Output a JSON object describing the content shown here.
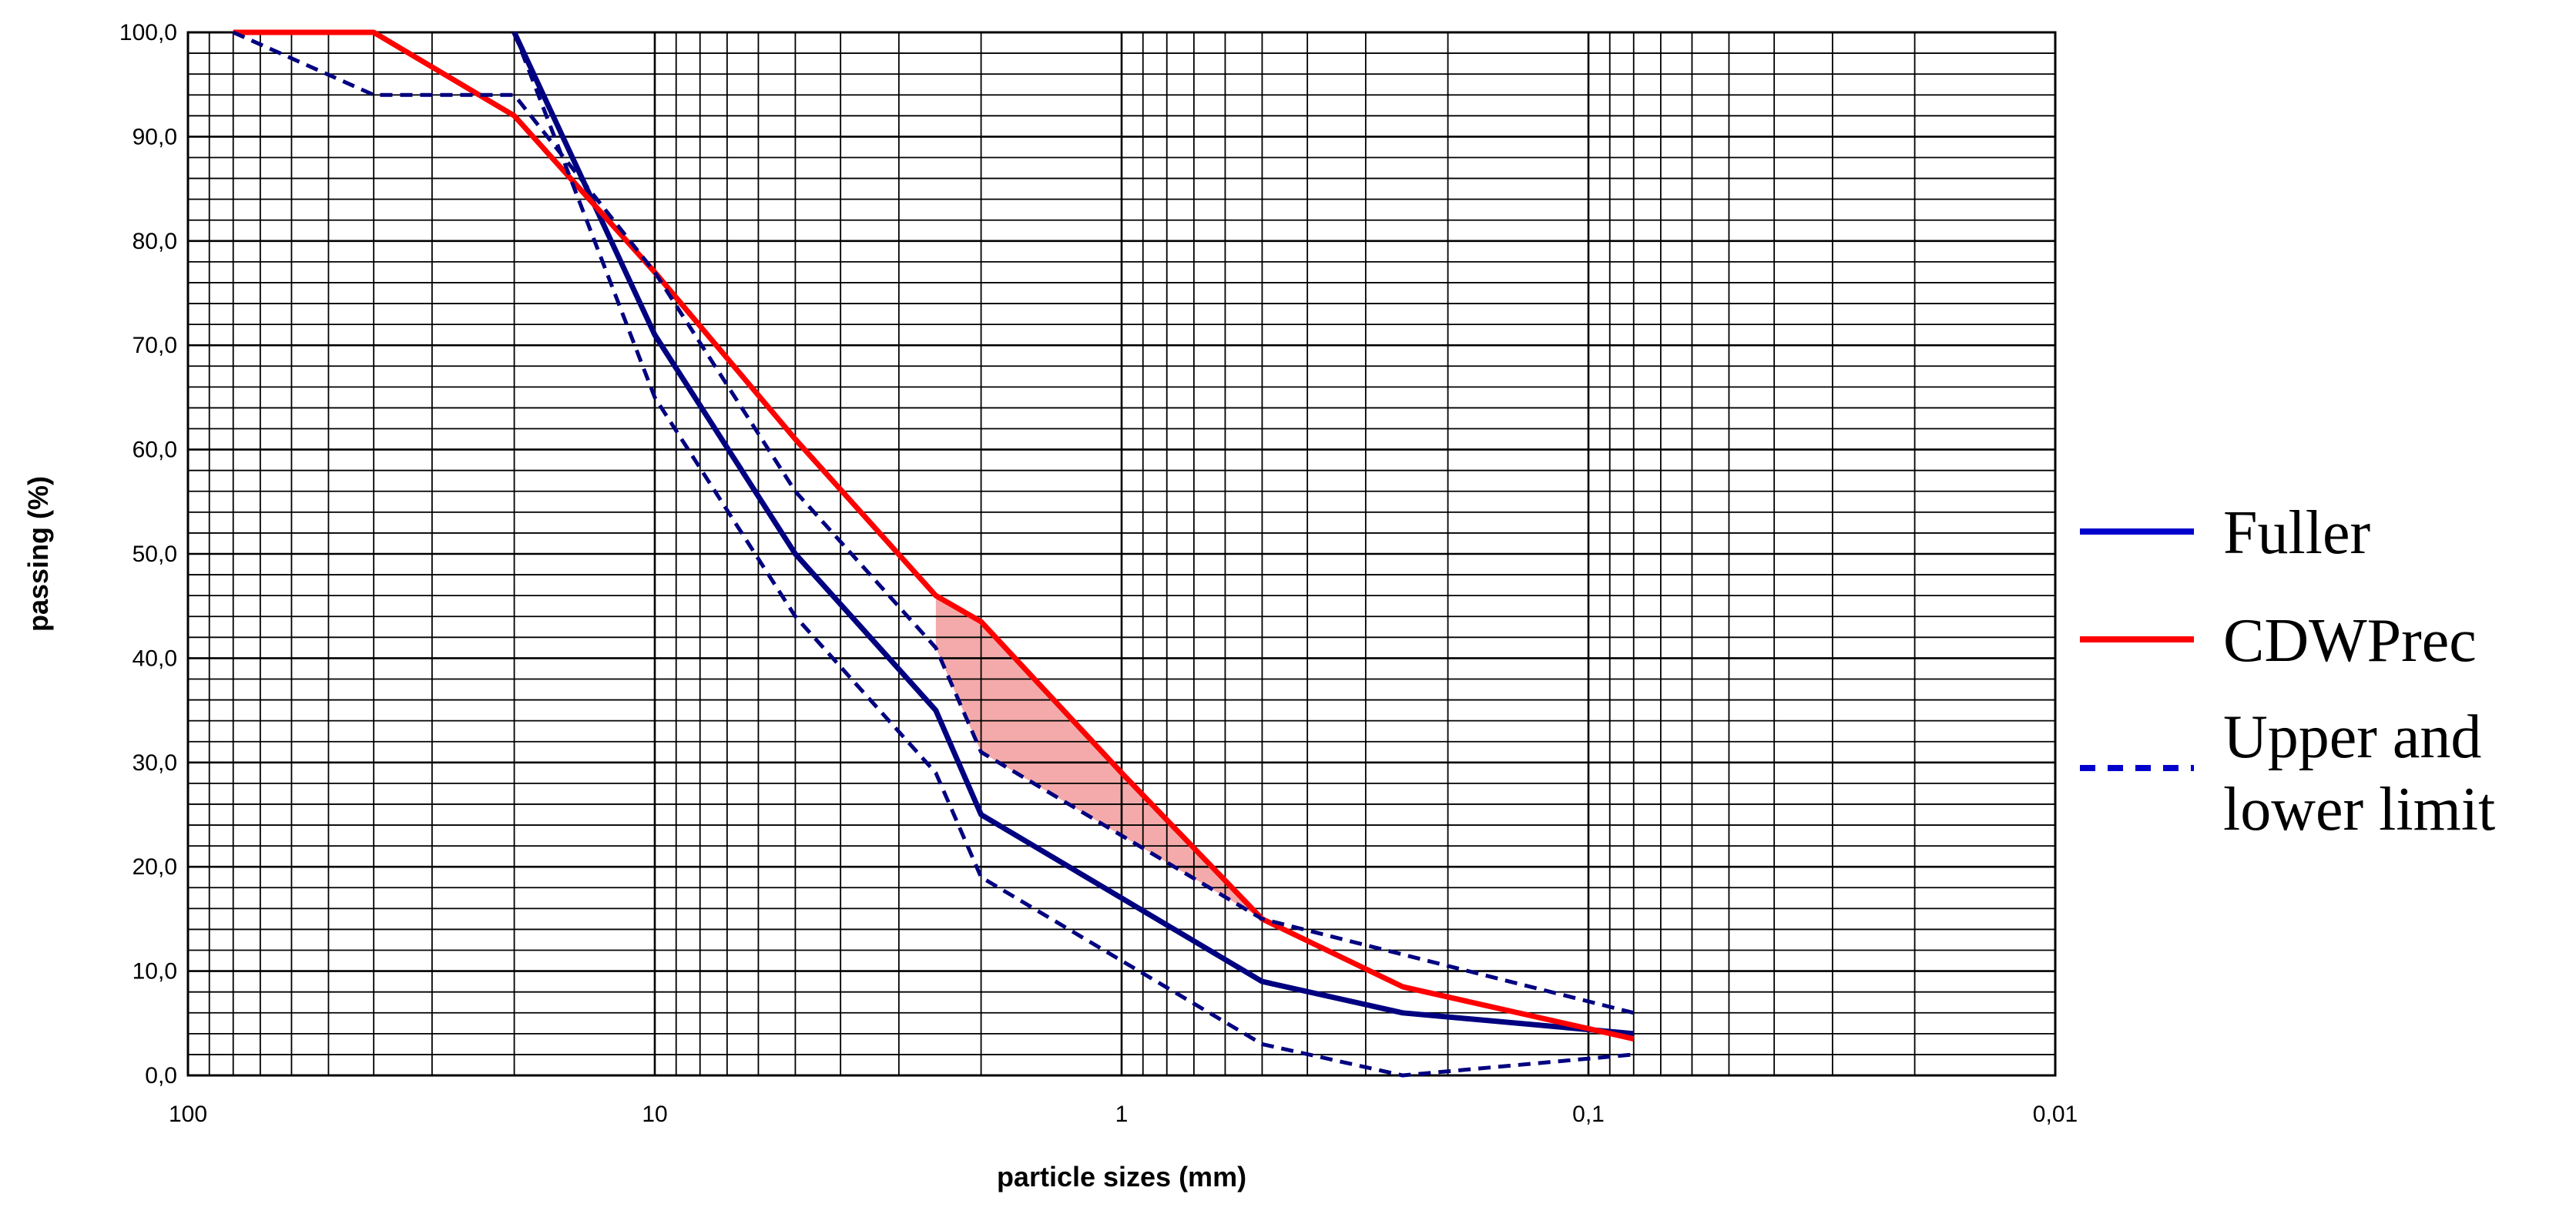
{
  "chart_data": {
    "type": "line",
    "xlabel": "particle sizes (mm)",
    "ylabel": "passing (%)",
    "x_scale": "log",
    "x_reversed": true,
    "xlim": [
      100,
      0.01
    ],
    "ylim": [
      0,
      100
    ],
    "grid": true,
    "legend_position": "right",
    "x_tick_labels": [
      {
        "value": 100,
        "label": "100"
      },
      {
        "value": 10,
        "label": "10"
      },
      {
        "value": 1,
        "label": "1"
      },
      {
        "value": 0.1,
        "label": "0,1"
      },
      {
        "value": 0.01,
        "label": "0,01"
      }
    ],
    "y_tick_labels": [
      {
        "value": 0,
        "label": "0,0"
      },
      {
        "value": 10,
        "label": "10,0"
      },
      {
        "value": 20,
        "label": "20,0"
      },
      {
        "value": 30,
        "label": "30,0"
      },
      {
        "value": 40,
        "label": "40,0"
      },
      {
        "value": 50,
        "label": "50,0"
      },
      {
        "value": 60,
        "label": "60,0"
      },
      {
        "value": 70,
        "label": "70,0"
      },
      {
        "value": 80,
        "label": "80,0"
      },
      {
        "value": 90,
        "label": "90,0"
      },
      {
        "value": 100,
        "label": "100,0"
      }
    ],
    "series": [
      {
        "name": "Fuller",
        "color": "#000080",
        "style": "solid",
        "points": [
          [
            20,
            100
          ],
          [
            10,
            71
          ],
          [
            5,
            50
          ],
          [
            2.5,
            35
          ],
          [
            2,
            25
          ],
          [
            0.5,
            9
          ],
          [
            0.25,
            6
          ],
          [
            0.08,
            4
          ]
        ]
      },
      {
        "name": "CDWPrec",
        "color": "#ff0000",
        "style": "solid",
        "points": [
          [
            80,
            100
          ],
          [
            40,
            100
          ],
          [
            20,
            92
          ],
          [
            10,
            77
          ],
          [
            5,
            61
          ],
          [
            2.5,
            46
          ],
          [
            2,
            43.5
          ],
          [
            1,
            29
          ],
          [
            0.5,
            15
          ],
          [
            0.25,
            8.5
          ],
          [
            0.08,
            3.5
          ]
        ]
      },
      {
        "name": "Upper and lower limit",
        "color": "#000080",
        "style": "dashed",
        "points": [
          [
            80,
            100
          ],
          [
            40,
            94
          ],
          [
            20,
            94
          ],
          [
            10,
            77
          ],
          [
            5,
            56
          ],
          [
            2.5,
            41
          ],
          [
            2,
            31
          ],
          [
            0.5,
            15
          ],
          [
            0.08,
            6
          ]
        ]
      },
      {
        "name": "Upper and lower limit",
        "color": "#000080",
        "style": "dashed",
        "points": [
          [
            20,
            100
          ],
          [
            10,
            65
          ],
          [
            5,
            44
          ],
          [
            2.5,
            29
          ],
          [
            2,
            19
          ],
          [
            1,
            11
          ],
          [
            0.5,
            3
          ],
          [
            0.25,
            0
          ],
          [
            0.08,
            2
          ]
        ]
      }
    ],
    "legend": [
      {
        "label": "Fuller",
        "color": "#0000cc",
        "style": "solid"
      },
      {
        "label": "CDWPrec",
        "color": "#ff0000",
        "style": "solid"
      },
      {
        "label": "Upper and",
        "label2": "lower limit",
        "color": "#0000cc",
        "style": "dashed"
      }
    ],
    "shaded_region_color": "#f4aaaa"
  }
}
